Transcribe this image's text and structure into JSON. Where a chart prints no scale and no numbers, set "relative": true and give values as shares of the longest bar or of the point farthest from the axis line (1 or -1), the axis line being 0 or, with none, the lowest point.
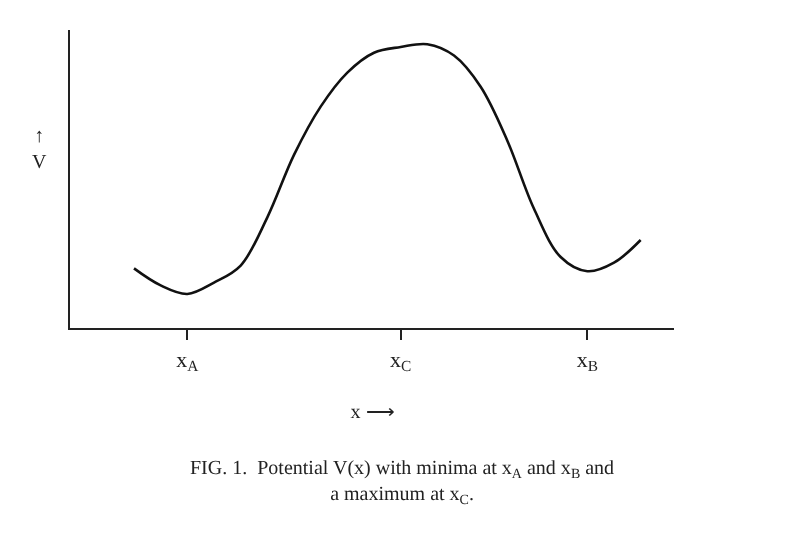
{
  "chart_data": {
    "type": "line",
    "relative": true,
    "xlabel": "x ⟶",
    "ylabel": "↑\nV",
    "categories": [
      null,
      null,
      "x$_{A}$",
      null,
      null,
      null,
      null,
      null,
      null,
      null,
      "x$_{C}$",
      null,
      null,
      null,
      null,
      null,
      null,
      "x$_{B}$",
      null,
      null
    ],
    "series": [
      {
        "color": "#111111",
        "values": [
          0.21,
          0.15,
          0.12,
          0.16,
          0.22,
          0.39,
          0.61,
          0.78,
          0.9,
          0.97,
          0.99,
          1,
          0.96,
          0.85,
          0.66,
          0.42,
          0.25,
          0.2,
          0.23,
          0.31
        ]
      }
    ],
    "tick_labels": "x",
    "marker": "none",
    "line_style": "solid",
    "annotations": [
      "FIG. 1.  Potential V(x) with minima at x$_{A}$ and x$_{B}$ and\na maximum at x$_{C}$."
    ]
  }
}
